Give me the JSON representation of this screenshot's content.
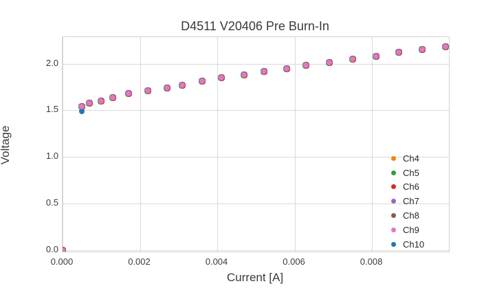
{
  "chart_data": {
    "type": "scatter",
    "title": "D4511 V20406 Pre Burn-In",
    "xlabel": "Current [A]",
    "ylabel": "Voltage",
    "xlim": [
      0,
      0.00999
    ],
    "ylim": [
      -0.017,
      2.286
    ],
    "grid": true,
    "legend_position": "lower-right",
    "xticks": [
      0,
      0.002,
      0.004,
      0.006,
      0.008
    ],
    "xtick_labels": [
      "0.000",
      "0.002",
      "0.004",
      "0.006",
      "0.008"
    ],
    "yticks": [
      0.0,
      0.5,
      1.0,
      1.5,
      2.0
    ],
    "ytick_labels": [
      "0.0",
      "0.5",
      "1.0",
      "1.5",
      "2.0"
    ],
    "x": [
      0.0,
      0.0005,
      0.0007,
      0.001,
      0.0013,
      0.0017,
      0.0022,
      0.0027,
      0.0031,
      0.0036,
      0.0041,
      0.0047,
      0.0052,
      0.0058,
      0.0063,
      0.0069,
      0.0075,
      0.0081,
      0.0087,
      0.0093,
      0.0099
    ],
    "series": [
      {
        "name": "Ch4",
        "color": "#ff7f0e",
        "y": [
          0.0,
          1.54,
          1.58,
          1.6,
          1.64,
          1.68,
          1.71,
          1.74,
          1.77,
          1.81,
          1.85,
          1.88,
          1.92,
          1.95,
          1.98,
          2.01,
          2.05,
          2.08,
          2.12,
          2.15,
          2.18
        ]
      },
      {
        "name": "Ch5",
        "color": "#2ca02c",
        "y": [
          0.0,
          1.54,
          1.58,
          1.6,
          1.64,
          1.68,
          1.71,
          1.74,
          1.77,
          1.81,
          1.85,
          1.88,
          1.92,
          1.95,
          1.98,
          2.01,
          2.05,
          2.08,
          2.12,
          2.15,
          2.18
        ]
      },
      {
        "name": "Ch6",
        "color": "#d62728",
        "y": [
          0.0,
          1.54,
          1.58,
          1.6,
          1.64,
          1.68,
          1.71,
          1.74,
          1.77,
          1.81,
          1.85,
          1.88,
          1.92,
          1.95,
          1.98,
          2.01,
          2.05,
          2.08,
          2.12,
          2.15,
          2.18
        ]
      },
      {
        "name": "Ch7",
        "color": "#9467bd",
        "y": [
          0.0,
          1.54,
          1.58,
          1.6,
          1.64,
          1.68,
          1.71,
          1.74,
          1.77,
          1.81,
          1.85,
          1.88,
          1.92,
          1.95,
          1.98,
          2.01,
          2.05,
          2.08,
          2.12,
          2.15,
          2.18
        ]
      },
      {
        "name": "Ch8",
        "color": "#8c564b",
        "y": [
          0.0,
          1.54,
          1.58,
          1.6,
          1.64,
          1.68,
          1.71,
          1.74,
          1.77,
          1.81,
          1.85,
          1.88,
          1.92,
          1.95,
          1.98,
          2.01,
          2.05,
          2.08,
          2.12,
          2.15,
          2.18
        ]
      },
      {
        "name": "Ch9",
        "color": "#e377c2",
        "y": [
          0.0,
          1.54,
          1.58,
          1.6,
          1.64,
          1.68,
          1.71,
          1.74,
          1.77,
          1.81,
          1.85,
          1.88,
          1.92,
          1.95,
          1.98,
          2.01,
          2.05,
          2.08,
          2.12,
          2.15,
          2.18
        ]
      },
      {
        "name": "Ch10",
        "color": "#1f77b4",
        "y": [
          0.0,
          1.49,
          1.58,
          1.6,
          1.64,
          1.68,
          1.71,
          1.74,
          1.77,
          1.81,
          1.85,
          1.88,
          1.92,
          1.95,
          1.98,
          2.01,
          2.05,
          2.08,
          2.12,
          2.15,
          2.18
        ]
      }
    ],
    "draw_order": [
      "Ch4",
      "Ch5",
      "Ch6",
      "Ch7",
      "Ch8",
      "Ch10",
      "Ch9"
    ]
  }
}
